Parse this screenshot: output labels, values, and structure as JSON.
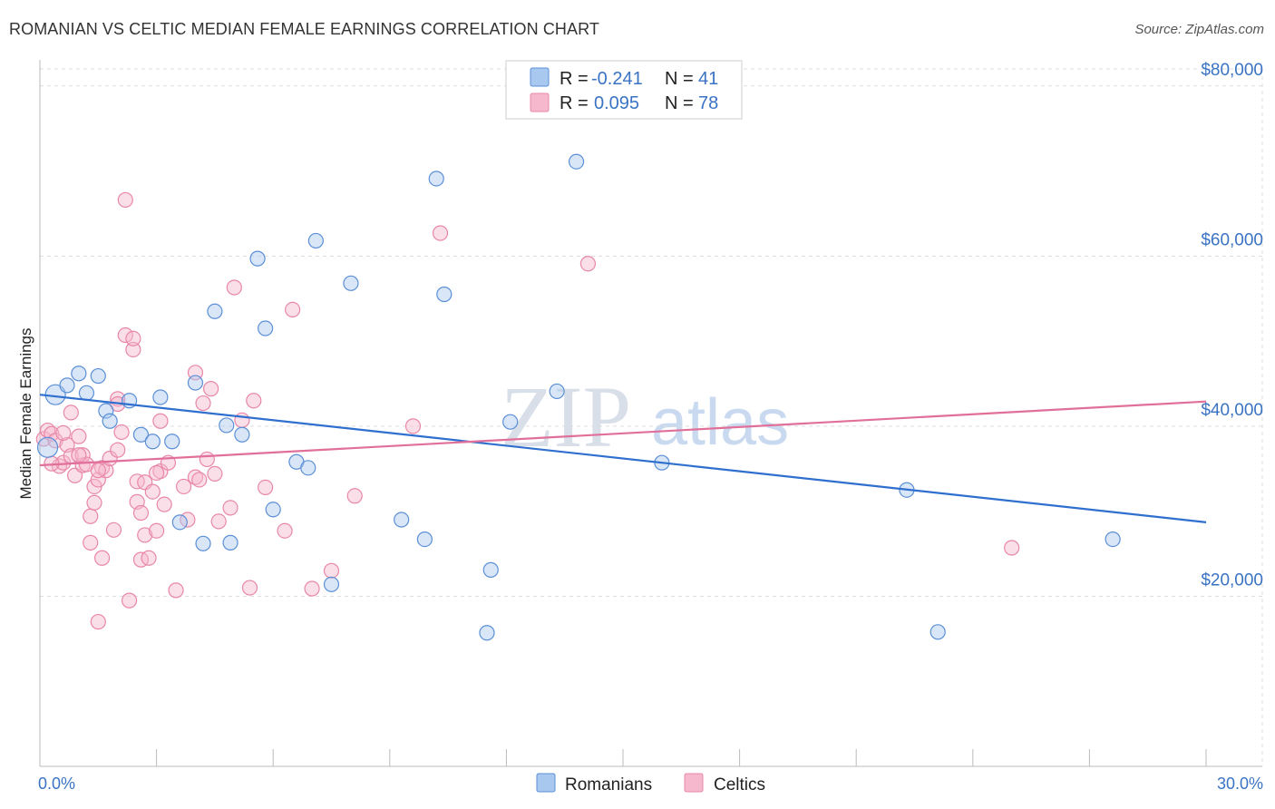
{
  "header": {
    "title": "ROMANIAN VS CELTIC MEDIAN FEMALE EARNINGS CORRELATION CHART",
    "source": "Source: ZipAtlas.com"
  },
  "watermark": {
    "zip": "ZIP",
    "atlas": "atlas"
  },
  "legend": {
    "romanians": {
      "r_label": "R =",
      "r_value": "-0.241",
      "n_label": "N =",
      "n_value": "41"
    },
    "celtics": {
      "r_label": "R =",
      "r_value": "0.095",
      "n_label": "N =",
      "n_value": "78"
    }
  },
  "colors": {
    "romanians_fill": "#a9c8f0",
    "romanians_stroke": "#5b8fd6",
    "romanians_line": "#2f6fce",
    "celtics_fill": "#f6b8cc",
    "celtics_stroke": "#e887a8",
    "celtics_line": "#e0709a",
    "axis_text": "#3a73c4",
    "grid": "#dddddd"
  },
  "chart_data": {
    "type": "scatter",
    "title": "ROMANIAN VS CELTIC MEDIAN FEMALE EARNINGS CORRELATION CHART",
    "xlabel": "",
    "ylabel": "Median Female Earnings",
    "xlim": [
      0,
      30
    ],
    "ylim": [
      0,
      82000
    ],
    "x_tick_labels": [
      "0.0%",
      "30.0%"
    ],
    "y_ticks": [
      20000,
      40000,
      60000,
      80000
    ],
    "y_tick_labels": [
      "$20,000",
      "$40,000",
      "$60,000",
      "$80,000"
    ],
    "grid": true,
    "series": [
      {
        "name": "Romanians",
        "r": -0.241,
        "n": 41,
        "trend": {
          "x": [
            0,
            30
          ],
          "y": [
            43700,
            28700
          ]
        },
        "points": [
          [
            0.2,
            37500
          ],
          [
            0.4,
            43700
          ],
          [
            0.7,
            44800
          ],
          [
            1.0,
            46200
          ],
          [
            1.2,
            43900
          ],
          [
            1.5,
            45900
          ],
          [
            1.7,
            41800
          ],
          [
            1.8,
            40600
          ],
          [
            2.3,
            43000
          ],
          [
            2.6,
            39000
          ],
          [
            2.9,
            38200
          ],
          [
            3.1,
            43400
          ],
          [
            3.4,
            38200
          ],
          [
            3.6,
            28700
          ],
          [
            4.0,
            45100
          ],
          [
            4.2,
            26200
          ],
          [
            4.5,
            53500
          ],
          [
            4.8,
            40100
          ],
          [
            4.9,
            26300
          ],
          [
            5.2,
            39000
          ],
          [
            5.6,
            59700
          ],
          [
            5.8,
            51500
          ],
          [
            6.0,
            30200
          ],
          [
            6.6,
            35800
          ],
          [
            6.9,
            35100
          ],
          [
            7.1,
            61800
          ],
          [
            7.5,
            21400
          ],
          [
            8.0,
            56800
          ],
          [
            9.3,
            29000
          ],
          [
            9.9,
            26700
          ],
          [
            10.2,
            69100
          ],
          [
            10.4,
            55500
          ],
          [
            11.5,
            15700
          ],
          [
            11.6,
            23100
          ],
          [
            12.1,
            40500
          ],
          [
            13.3,
            44100
          ],
          [
            13.8,
            71100
          ],
          [
            16.0,
            35700
          ],
          [
            22.3,
            32500
          ],
          [
            23.1,
            15800
          ],
          [
            27.6,
            26700
          ]
        ]
      },
      {
        "name": "Celtics",
        "r": 0.095,
        "n": 78,
        "trend": {
          "x": [
            0,
            30
          ],
          "y": [
            35400
          ],
          "y_end": [
            42900
          ]
        },
        "points": [
          [
            0.1,
            38500
          ],
          [
            0.2,
            39500
          ],
          [
            0.3,
            39100
          ],
          [
            0.4,
            38300
          ],
          [
            0.5,
            35300
          ],
          [
            0.6,
            35700
          ],
          [
            0.7,
            37800
          ],
          [
            0.8,
            41600
          ],
          [
            0.8,
            36500
          ],
          [
            0.9,
            34200
          ],
          [
            1.0,
            38800
          ],
          [
            1.1,
            35400
          ],
          [
            1.1,
            36600
          ],
          [
            1.2,
            35500
          ],
          [
            1.3,
            26300
          ],
          [
            1.3,
            29400
          ],
          [
            1.4,
            31000
          ],
          [
            1.4,
            32900
          ],
          [
            1.5,
            33700
          ],
          [
            1.5,
            17000
          ],
          [
            1.6,
            24500
          ],
          [
            1.6,
            35100
          ],
          [
            1.7,
            34800
          ],
          [
            1.8,
            36200
          ],
          [
            1.9,
            27800
          ],
          [
            2.0,
            37200
          ],
          [
            2.0,
            43200
          ],
          [
            2.1,
            39300
          ],
          [
            2.2,
            66600
          ],
          [
            2.2,
            50700
          ],
          [
            2.3,
            19500
          ],
          [
            2.4,
            49000
          ],
          [
            2.4,
            50300
          ],
          [
            2.5,
            31100
          ],
          [
            2.5,
            33500
          ],
          [
            2.6,
            29800
          ],
          [
            2.6,
            24300
          ],
          [
            2.7,
            27200
          ],
          [
            2.7,
            33400
          ],
          [
            2.8,
            24500
          ],
          [
            2.9,
            32300
          ],
          [
            3.0,
            27700
          ],
          [
            3.1,
            34700
          ],
          [
            3.1,
            40600
          ],
          [
            3.2,
            30800
          ],
          [
            3.3,
            35700
          ],
          [
            3.5,
            20700
          ],
          [
            3.7,
            32900
          ],
          [
            3.8,
            29000
          ],
          [
            4.0,
            34000
          ],
          [
            4.0,
            46300
          ],
          [
            4.1,
            33700
          ],
          [
            4.2,
            42700
          ],
          [
            4.3,
            36100
          ],
          [
            4.4,
            44400
          ],
          [
            4.6,
            28800
          ],
          [
            4.9,
            30400
          ],
          [
            5.0,
            56300
          ],
          [
            5.2,
            40700
          ],
          [
            5.4,
            21000
          ],
          [
            5.5,
            43000
          ],
          [
            5.8,
            32800
          ],
          [
            6.3,
            27700
          ],
          [
            6.5,
            53700
          ],
          [
            7.0,
            20900
          ],
          [
            7.5,
            23000
          ],
          [
            8.1,
            31800
          ],
          [
            9.6,
            40000
          ],
          [
            10.3,
            62700
          ],
          [
            14.1,
            59100
          ],
          [
            25.0,
            25700
          ],
          [
            0.3,
            35600
          ],
          [
            0.6,
            39200
          ],
          [
            1.0,
            36600
          ],
          [
            1.5,
            34800
          ],
          [
            2.0,
            42600
          ],
          [
            3.0,
            34500
          ],
          [
            4.5,
            34400
          ]
        ]
      }
    ]
  },
  "bottom_legend": {
    "romanians": "Romanians",
    "celtics": "Celtics"
  }
}
